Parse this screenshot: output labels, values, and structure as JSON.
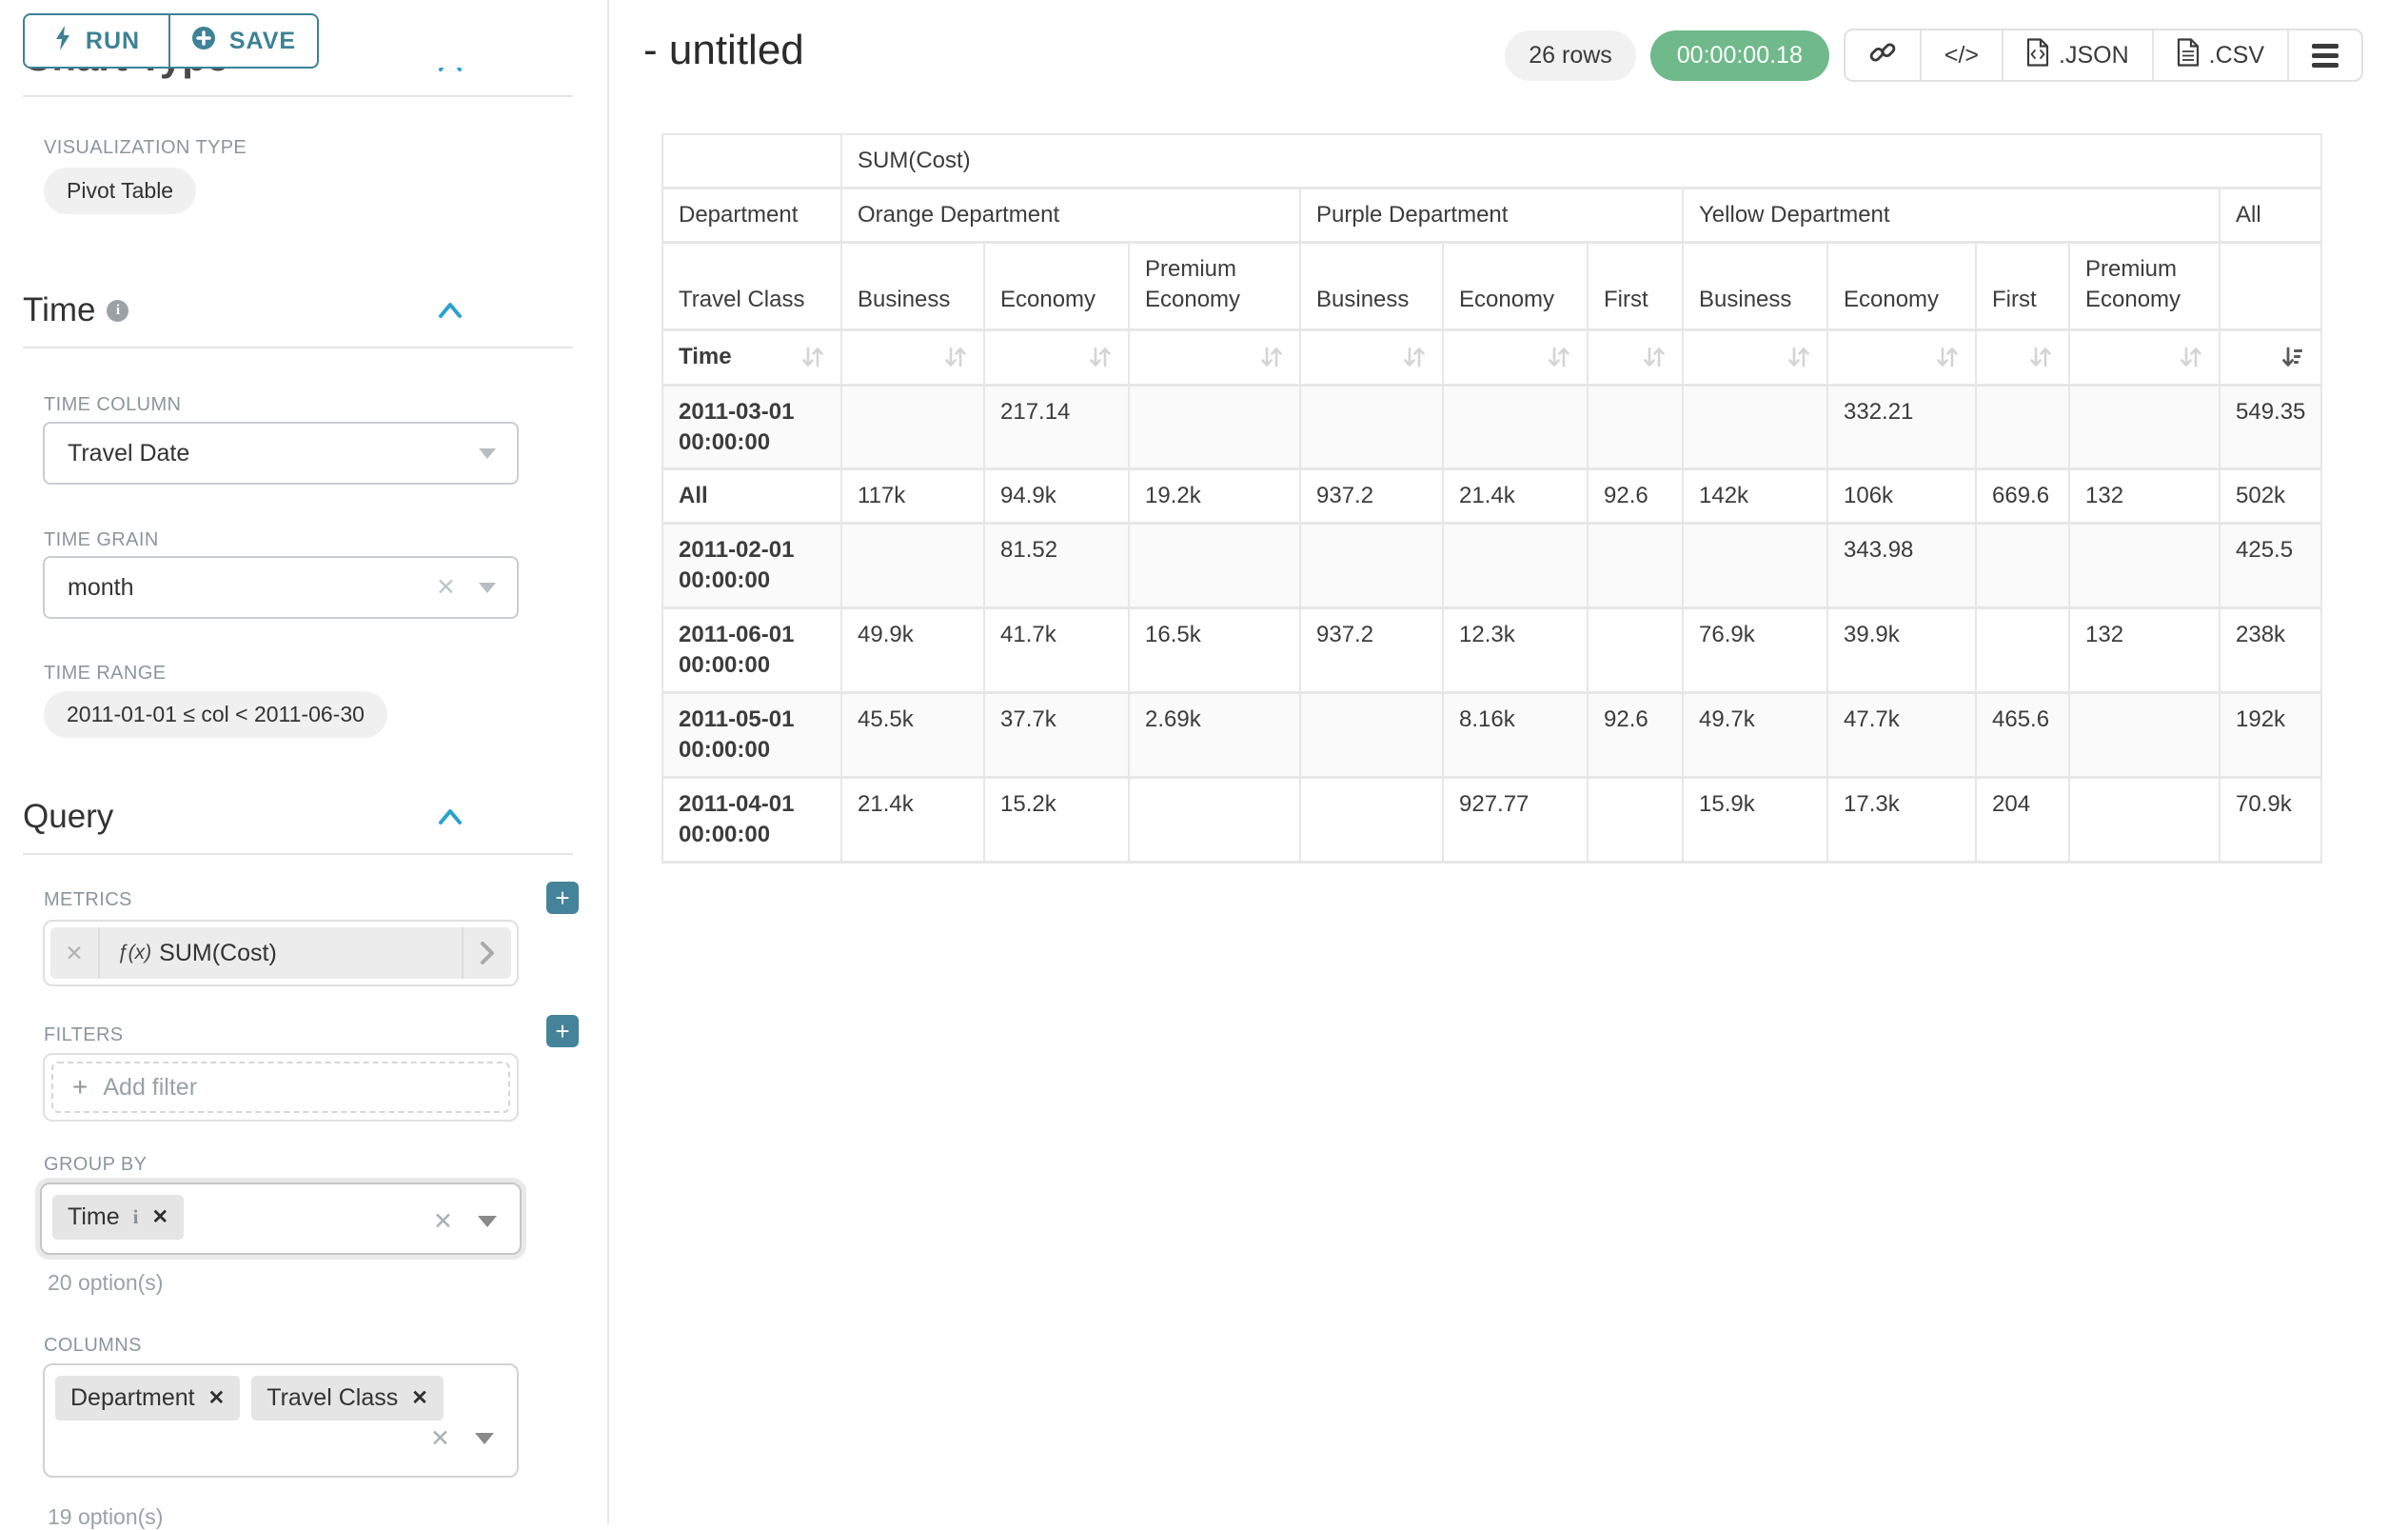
{
  "sidebar": {
    "run_label": "RUN",
    "save_label": "SAVE",
    "chart_type_heading": "Chart Type",
    "viz_type_label": "VISUALIZATION TYPE",
    "viz_type_value": "Pivot Table",
    "time_section": "Time",
    "time_column_label": "TIME COLUMN",
    "time_column_value": "Travel Date",
    "time_grain_label": "TIME GRAIN",
    "time_grain_value": "month",
    "time_range_label": "TIME RANGE",
    "time_range_value": "2011-01-01 ≤ col < 2011-06-30",
    "query_section": "Query",
    "metrics_label": "METRICS",
    "metric_fx": "ƒ(x)",
    "metric_value": "SUM(Cost)",
    "filters_label": "FILTERS",
    "add_filter_label": "Add filter",
    "group_by_label": "GROUP BY",
    "group_by_tags": [
      "Time"
    ],
    "group_by_options": "20 option(s)",
    "columns_label": "COLUMNS",
    "columns_tags": [
      "Department",
      "Travel Class"
    ],
    "columns_options": "19 option(s)"
  },
  "header": {
    "title": "- untitled",
    "row_count": "26 rows",
    "elapsed": "00:00:00.18",
    "code_label": "</>",
    "json_label": ".JSON",
    "csv_label": ".CSV"
  },
  "pivot": {
    "metric_header": "SUM(Cost)",
    "row_dim_label": "Department",
    "col_dim_label": "Travel Class",
    "time_label": "Time",
    "groups": [
      {
        "label": "Orange Department",
        "cols": [
          "Business",
          "Economy",
          "Premium Economy"
        ]
      },
      {
        "label": "Purple Department",
        "cols": [
          "Business",
          "Economy",
          "First"
        ]
      },
      {
        "label": "Yellow Department",
        "cols": [
          "Business",
          "Economy",
          "First",
          "Premium Economy"
        ]
      },
      {
        "label": "All",
        "cols": [
          ""
        ]
      }
    ],
    "rows": [
      {
        "label": "2011-03-01 00:00:00",
        "values": [
          "",
          "217.14",
          "",
          "",
          "",
          "",
          "",
          "332.21",
          "",
          "",
          "549.35"
        ]
      },
      {
        "label": "All",
        "values": [
          "117k",
          "94.9k",
          "19.2k",
          "937.2",
          "21.4k",
          "92.6",
          "142k",
          "106k",
          "669.6",
          "132",
          "502k"
        ]
      },
      {
        "label": "2011-02-01 00:00:00",
        "values": [
          "",
          "81.52",
          "",
          "",
          "",
          "",
          "",
          "343.98",
          "",
          "",
          "425.5"
        ]
      },
      {
        "label": "2011-06-01 00:00:00",
        "values": [
          "49.9k",
          "41.7k",
          "16.5k",
          "937.2",
          "12.3k",
          "",
          "76.9k",
          "39.9k",
          "",
          "132",
          "238k"
        ]
      },
      {
        "label": "2011-05-01 00:00:00",
        "values": [
          "45.5k",
          "37.7k",
          "2.69k",
          "",
          "8.16k",
          "92.6",
          "49.7k",
          "47.7k",
          "465.6",
          "",
          "192k"
        ]
      },
      {
        "label": "2011-04-01 00:00:00",
        "values": [
          "21.4k",
          "15.2k",
          "",
          "",
          "927.77",
          "",
          "15.9k",
          "17.3k",
          "204",
          "",
          "70.9k"
        ]
      }
    ],
    "sorted_column": "All",
    "sort_direction": "descending"
  }
}
